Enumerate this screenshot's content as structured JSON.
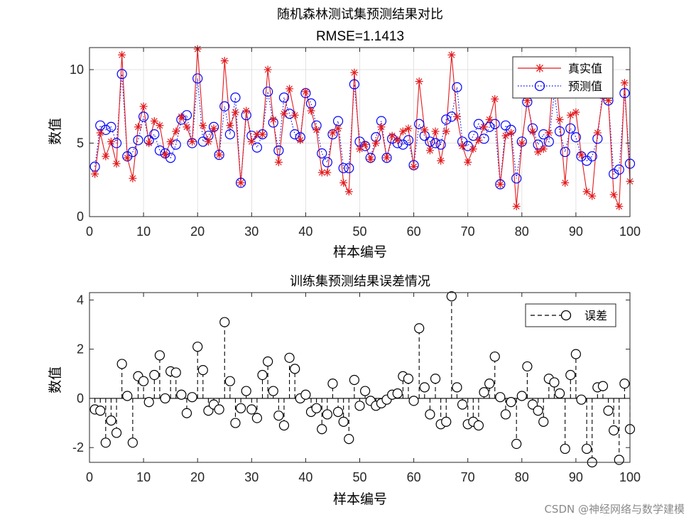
{
  "watermark": "CSDN @神经网络与数学建模",
  "chart_data": [
    {
      "type": "line",
      "title": "随机森林测试集预测结果对比",
      "subtitle": "RMSE=1.1413",
      "xlabel": "样本编号",
      "ylabel": "数值",
      "xlim": [
        0,
        100
      ],
      "ylim": [
        0,
        11.5
      ],
      "xticks": [
        0,
        10,
        20,
        30,
        40,
        50,
        60,
        70,
        80,
        90,
        100
      ],
      "yticks": [
        0,
        5,
        10
      ],
      "grid": true,
      "legend_position": "top-right",
      "x": [
        1,
        2,
        3,
        4,
        5,
        6,
        7,
        8,
        9,
        10,
        11,
        12,
        13,
        14,
        15,
        16,
        17,
        18,
        19,
        20,
        21,
        22,
        23,
        24,
        25,
        26,
        27,
        28,
        29,
        30,
        31,
        32,
        33,
        34,
        35,
        36,
        37,
        38,
        39,
        40,
        41,
        42,
        43,
        44,
        45,
        46,
        47,
        48,
        49,
        50,
        51,
        52,
        53,
        54,
        55,
        56,
        57,
        58,
        59,
        60,
        61,
        62,
        63,
        64,
        65,
        66,
        67,
        68,
        69,
        70,
        71,
        72,
        73,
        74,
        75,
        76,
        77,
        78,
        79,
        80,
        81,
        82,
        83,
        84,
        85,
        86,
        87,
        88,
        89,
        90,
        91,
        92,
        93,
        94,
        95,
        96,
        97,
        98,
        99,
        100
      ],
      "series": [
        {
          "name": "真实值",
          "color": "#e31a1c",
          "marker": "asterisk",
          "values": [
            2.9,
            5.7,
            4.1,
            5.1,
            3.6,
            11.0,
            4.0,
            2.6,
            6.1,
            7.5,
            5.0,
            6.5,
            6.2,
            4.2,
            5.1,
            5.8,
            6.8,
            6.1,
            5.1,
            11.4,
            6.2,
            5.1,
            6.0,
            4.2,
            10.6,
            6.2,
            7.1,
            2.3,
            7.2,
            5.1,
            5.6,
            5.6,
            10.0,
            6.6,
            3.7,
            7.0,
            8.7,
            6.9,
            5.2,
            8.5,
            7.2,
            5.9,
            3.0,
            3.0,
            5.7,
            6.0,
            2.3,
            1.7,
            9.8,
            4.6,
            4.9,
            3.9,
            5.0,
            6.1,
            4.0,
            5.5,
            5.2,
            5.8,
            6.0,
            3.4,
            9.2,
            5.9,
            4.5,
            5.8,
            3.8,
            5.8,
            11.0,
            6.8,
            4.8,
            3.7,
            4.6,
            5.2,
            6.1,
            6.6,
            8.0,
            2.2,
            5.5,
            5.7,
            0.7,
            5.0,
            7.9,
            5.8,
            4.4,
            4.6,
            5.7,
            10.5,
            6.6,
            2.3,
            6.9,
            7.1,
            4.2,
            1.7,
            1.4,
            5.7,
            8.2,
            7.9,
            1.5,
            0.7,
            9.1,
            2.4
          ]
        },
        {
          "name": "预测值",
          "color": "#0000ff",
          "marker": "circle",
          "values": [
            3.4,
            6.2,
            5.9,
            6.1,
            5.0,
            9.7,
            4.1,
            4.4,
            5.2,
            6.8,
            5.2,
            5.6,
            4.5,
            4.3,
            4.0,
            4.9,
            6.6,
            6.9,
            5.0,
            9.4,
            5.1,
            5.5,
            6.1,
            4.2,
            7.5,
            5.6,
            8.1,
            2.3,
            6.9,
            5.5,
            4.7,
            5.6,
            8.5,
            6.4,
            4.5,
            8.1,
            7.0,
            5.6,
            5.4,
            8.4,
            7.7,
            6.2,
            4.3,
            3.7,
            5.6,
            6.5,
            3.3,
            3.3,
            9.0,
            5.1,
            4.8,
            4.0,
            5.4,
            6.5,
            4.0,
            5.3,
            5.0,
            4.9,
            5.2,
            3.5,
            6.3,
            5.5,
            5.1,
            5.0,
            4.9,
            6.6,
            6.8,
            8.8,
            5.1,
            4.8,
            5.5,
            6.3,
            5.3,
            6.1,
            6.3,
            2.2,
            6.2,
            5.9,
            2.6,
            5.1,
            7.8,
            6.0,
            4.9,
            5.6,
            5.1,
            8.4,
            5.8,
            4.4,
            6.0,
            5.4,
            4.1,
            3.8,
            4.1,
            5.3,
            8.7,
            7.9,
            2.9,
            3.2,
            8.4,
            3.6
          ]
        }
      ]
    },
    {
      "type": "stem",
      "title": "训练集预测结果误差情况",
      "xlabel": "样本编号",
      "ylabel": "数值",
      "xlim": [
        0,
        100
      ],
      "ylim": [
        -2.6,
        4.3
      ],
      "xticks": [
        0,
        10,
        20,
        30,
        40,
        50,
        60,
        70,
        80,
        90,
        100
      ],
      "yticks": [
        -2,
        0,
        2,
        4
      ],
      "grid": false,
      "legend_position": "top-right",
      "series": [
        {
          "name": "误差",
          "color": "#000000",
          "marker": "circle",
          "line": "dashed",
          "values": [
            -0.45,
            -0.5,
            -1.8,
            -0.9,
            -1.4,
            1.4,
            0.1,
            -1.8,
            0.9,
            0.7,
            -0.15,
            0.95,
            1.75,
            0.0,
            1.1,
            1.05,
            0.15,
            -0.6,
            0.05,
            2.1,
            1.15,
            -0.5,
            -0.25,
            -0.45,
            3.1,
            0.7,
            -1.0,
            -0.4,
            0.3,
            -0.45,
            -0.8,
            0.95,
            1.5,
            0.3,
            -0.7,
            -1.1,
            1.65,
            1.2,
            0.0,
            0.15,
            -0.55,
            -0.4,
            -1.25,
            -0.65,
            0.6,
            -0.55,
            -0.95,
            -1.65,
            0.75,
            -0.3,
            0.3,
            -0.1,
            -0.3,
            -0.2,
            -0.05,
            0.15,
            0.2,
            0.9,
            0.8,
            -0.1,
            2.85,
            0.45,
            -0.65,
            0.8,
            -1.05,
            -0.95,
            4.15,
            0.45,
            -0.25,
            -1.05,
            -0.95,
            -1.1,
            0.25,
            0.6,
            1.7,
            0.05,
            -0.65,
            -0.15,
            -1.85,
            0.1,
            1.3,
            -0.25,
            -0.5,
            -0.95,
            0.8,
            0.65,
            0.2,
            -2.05,
            0.95,
            1.8,
            -0.05,
            -2.05,
            -2.6,
            0.45,
            0.5,
            -0.5,
            -1.3,
            -2.5,
            0.6,
            -1.25
          ]
        }
      ]
    }
  ]
}
